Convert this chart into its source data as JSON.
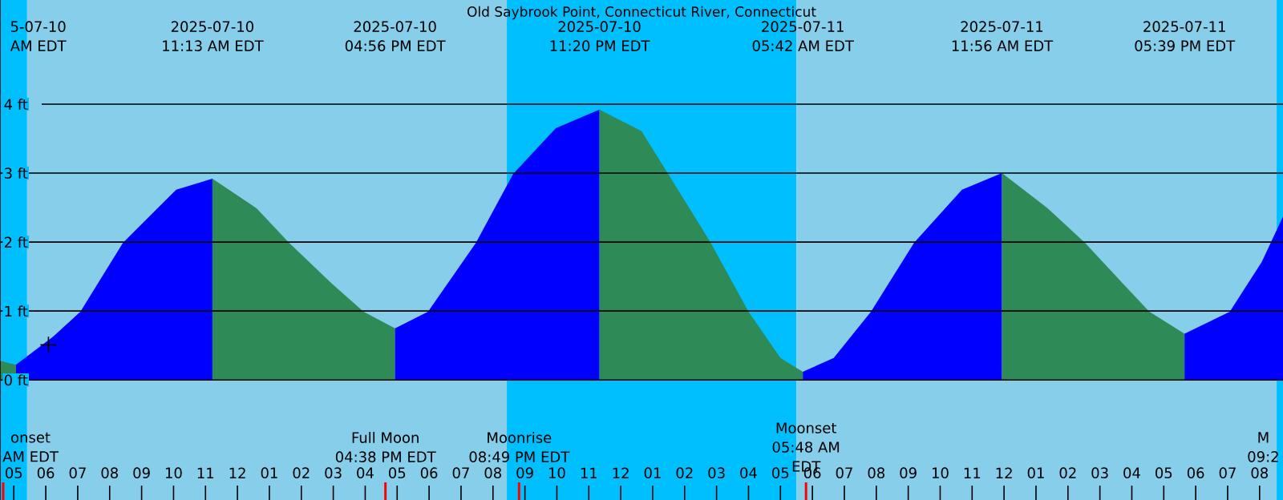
{
  "chart_data": {
    "type": "area",
    "title": "Old Saybrook Point, Connecticut River, Connecticut",
    "xlim": [
      "2025-07-10T04:34",
      "2025-07-11T20:44"
    ],
    "ylim": [
      -1.74,
      5.51
    ],
    "yticks": [
      {
        "value": 0,
        "label": "0 ft"
      },
      {
        "value": 1,
        "label": "1 ft"
      },
      {
        "value": 2,
        "label": "2 ft"
      },
      {
        "value": 3,
        "label": "3 ft"
      },
      {
        "value": 4,
        "label": "4 ft"
      }
    ],
    "xticks": [
      {
        "value": "2025-07-10T05:00",
        "label": "05"
      },
      {
        "value": "2025-07-10T06:00",
        "label": "06"
      },
      {
        "value": "2025-07-10T07:00",
        "label": "07"
      },
      {
        "value": "2025-07-10T08:00",
        "label": "08"
      },
      {
        "value": "2025-07-10T09:00",
        "label": "09"
      },
      {
        "value": "2025-07-10T10:00",
        "label": "10"
      },
      {
        "value": "2025-07-10T11:00",
        "label": "11"
      },
      {
        "value": "2025-07-10T12:00",
        "label": "12"
      },
      {
        "value": "2025-07-10T13:00",
        "label": "01"
      },
      {
        "value": "2025-07-10T14:00",
        "label": "02"
      },
      {
        "value": "2025-07-10T15:00",
        "label": "03"
      },
      {
        "value": "2025-07-10T16:00",
        "label": "04"
      },
      {
        "value": "2025-07-10T17:00",
        "label": "05"
      },
      {
        "value": "2025-07-10T18:00",
        "label": "06"
      },
      {
        "value": "2025-07-10T19:00",
        "label": "07"
      },
      {
        "value": "2025-07-10T20:00",
        "label": "08"
      },
      {
        "value": "2025-07-10T21:00",
        "label": "09"
      },
      {
        "value": "2025-07-10T22:00",
        "label": "10"
      },
      {
        "value": "2025-07-10T23:00",
        "label": "11"
      },
      {
        "value": "2025-07-11T00:00",
        "label": "12"
      },
      {
        "value": "2025-07-11T01:00",
        "label": "01"
      },
      {
        "value": "2025-07-11T02:00",
        "label": "02"
      },
      {
        "value": "2025-07-11T03:00",
        "label": "03"
      },
      {
        "value": "2025-07-11T04:00",
        "label": "04"
      },
      {
        "value": "2025-07-11T05:00",
        "label": "05"
      },
      {
        "value": "2025-07-11T06:00",
        "label": "06"
      },
      {
        "value": "2025-07-11T07:00",
        "label": "07"
      },
      {
        "value": "2025-07-11T08:00",
        "label": "08"
      },
      {
        "value": "2025-07-11T09:00",
        "label": "09"
      },
      {
        "value": "2025-07-11T10:00",
        "label": "10"
      },
      {
        "value": "2025-07-11T11:00",
        "label": "11"
      },
      {
        "value": "2025-07-11T12:00",
        "label": "12"
      },
      {
        "value": "2025-07-11T13:00",
        "label": "01"
      },
      {
        "value": "2025-07-11T14:00",
        "label": "02"
      },
      {
        "value": "2025-07-11T15:00",
        "label": "03"
      },
      {
        "value": "2025-07-11T16:00",
        "label": "04"
      },
      {
        "value": "2025-07-11T17:00",
        "label": "05"
      },
      {
        "value": "2025-07-11T18:00",
        "label": "06"
      },
      {
        "value": "2025-07-11T19:00",
        "label": "07"
      },
      {
        "value": "2025-07-11T20:00",
        "label": "08"
      }
    ],
    "x2lim": [
      "2025-07-10T04:34",
      "2025-07-11T20:44"
    ],
    "x2ticks": [
      {
        "value": "2025-07-10T05:04",
        "label": "5-07-10 AM EDT"
      },
      {
        "value": "2025-07-10T11:13",
        "label": "2025-07-10 11:13 AM EDT"
      },
      {
        "value": "2025-07-10T16:56",
        "label": "2025-07-10 04:56 PM EDT"
      },
      {
        "value": "2025-07-10T23:20",
        "label": "2025-07-10 11:20 PM EDT"
      },
      {
        "value": "2025-07-11T05:42",
        "label": "2025-07-11 05:42 AM EDT"
      },
      {
        "value": "2025-07-11T11:56",
        "label": "2025-07-11 11:56 AM EDT"
      },
      {
        "value": "2025-07-11T17:39",
        "label": "2025-07-11 05:39 PM EDT"
      }
    ],
    "grid": "y",
    "bands": [
      {
        "axis": "x",
        "from": "2025-07-10T04:34",
        "to": "2025-07-10T05:25",
        "color": "#00bfff"
      },
      {
        "axis": "x",
        "from": "2025-07-10T05:25",
        "to": "2025-07-10T20:26",
        "color": "#87ceeb"
      },
      {
        "axis": "x",
        "from": "2025-07-10T20:26",
        "to": "2025-07-11T05:30",
        "color": "#00bfff"
      },
      {
        "axis": "x",
        "from": "2025-07-11T05:30",
        "to": "2025-07-11T20:32",
        "color": "#87ceeb"
      },
      {
        "axis": "x",
        "from": "2025-07-11T20:32",
        "to": "2025-07-11T20:44",
        "color": "#00bfff"
      }
    ],
    "ref_lines": [
      {
        "axis": "x",
        "value": "2025-07-10T04:40",
        "label": "onset AM EDT",
        "color": "#ff0000"
      },
      {
        "axis": "x",
        "value": "2025-07-10T16:38",
        "label": "Full Moon 04:38 PM EDT",
        "color": "#ff0000"
      },
      {
        "axis": "x",
        "value": "2025-07-10T20:49",
        "label": "Moonrise 08:49 PM EDT",
        "color": "#ff0000"
      },
      {
        "axis": "x",
        "value": "2025-07-11T05:48",
        "label": "Moonset 05:48 AM EDT",
        "color": "#ff0000"
      }
    ],
    "series": [
      {
        "color": "#2e8b57",
        "x": [
          "2025-07-10T04:34",
          "2025-07-10T05:04"
        ],
        "values": [
          0.28,
          0.22
        ]
      },
      {
        "color": "#0000ff",
        "x": [
          "2025-07-10T05:04",
          "2025-07-10T06:14",
          "2025-07-10T07:05",
          "2025-07-10T08:25",
          "2025-07-10T10:05",
          "2025-07-10T11:13"
        ],
        "values": [
          0.22,
          0.63,
          0.99,
          1.99,
          2.76,
          2.92
        ]
      },
      {
        "color": "#2e8b57",
        "x": [
          "2025-07-10T11:13",
          "2025-07-10T12:36",
          "2025-07-10T13:37",
          "2025-07-10T14:57",
          "2025-07-10T15:57",
          "2025-07-10T16:56"
        ],
        "values": [
          2.92,
          2.49,
          1.99,
          1.4,
          0.99,
          0.75
        ]
      },
      {
        "color": "#0000ff",
        "x": [
          "2025-07-10T16:56",
          "2025-07-10T17:58",
          "2025-07-10T19:28",
          "2025-07-10T20:38",
          "2025-07-10T21:58",
          "2025-07-10T23:20"
        ],
        "values": [
          0.75,
          0.99,
          1.99,
          2.99,
          3.65,
          3.92
        ]
      },
      {
        "color": "#2e8b57",
        "x": [
          "2025-07-10T23:20",
          "2025-07-11T00:39",
          "2025-07-11T01:29",
          "2025-07-11T02:49",
          "2025-07-11T04:00",
          "2025-07-11T05:00",
          "2025-07-11T05:42"
        ],
        "values": [
          3.92,
          3.61,
          2.99,
          1.99,
          0.99,
          0.32,
          0.12
        ]
      },
      {
        "color": "#0000ff",
        "x": [
          "2025-07-11T05:42",
          "2025-07-11T06:40",
          "2025-07-11T07:50",
          "2025-07-11T09:11",
          "2025-07-11T10:41",
          "2025-07-11T11:56"
        ],
        "values": [
          0.12,
          0.32,
          0.99,
          1.99,
          2.76,
          3.0
        ]
      },
      {
        "color": "#2e8b57",
        "x": [
          "2025-07-11T11:56",
          "2025-07-11T13:22",
          "2025-07-11T14:32",
          "2025-07-11T15:43",
          "2025-07-11T16:33",
          "2025-07-11T17:39"
        ],
        "values": [
          3.0,
          2.49,
          1.99,
          1.4,
          0.99,
          0.67
        ]
      },
      {
        "color": "#0000ff",
        "x": [
          "2025-07-11T17:39",
          "2025-07-11T19:04",
          "2025-07-11T20:04",
          "2025-07-11T20:44"
        ],
        "values": [
          0.67,
          0.99,
          1.71,
          2.37
        ]
      },
      {
        "type": "scatter",
        "color": "#000000",
        "marker": "cross",
        "x": [
          "2025-07-10T06:05"
        ],
        "values": [
          0.51
        ]
      }
    ],
    "annotations": [
      "M 09:2"
    ]
  }
}
